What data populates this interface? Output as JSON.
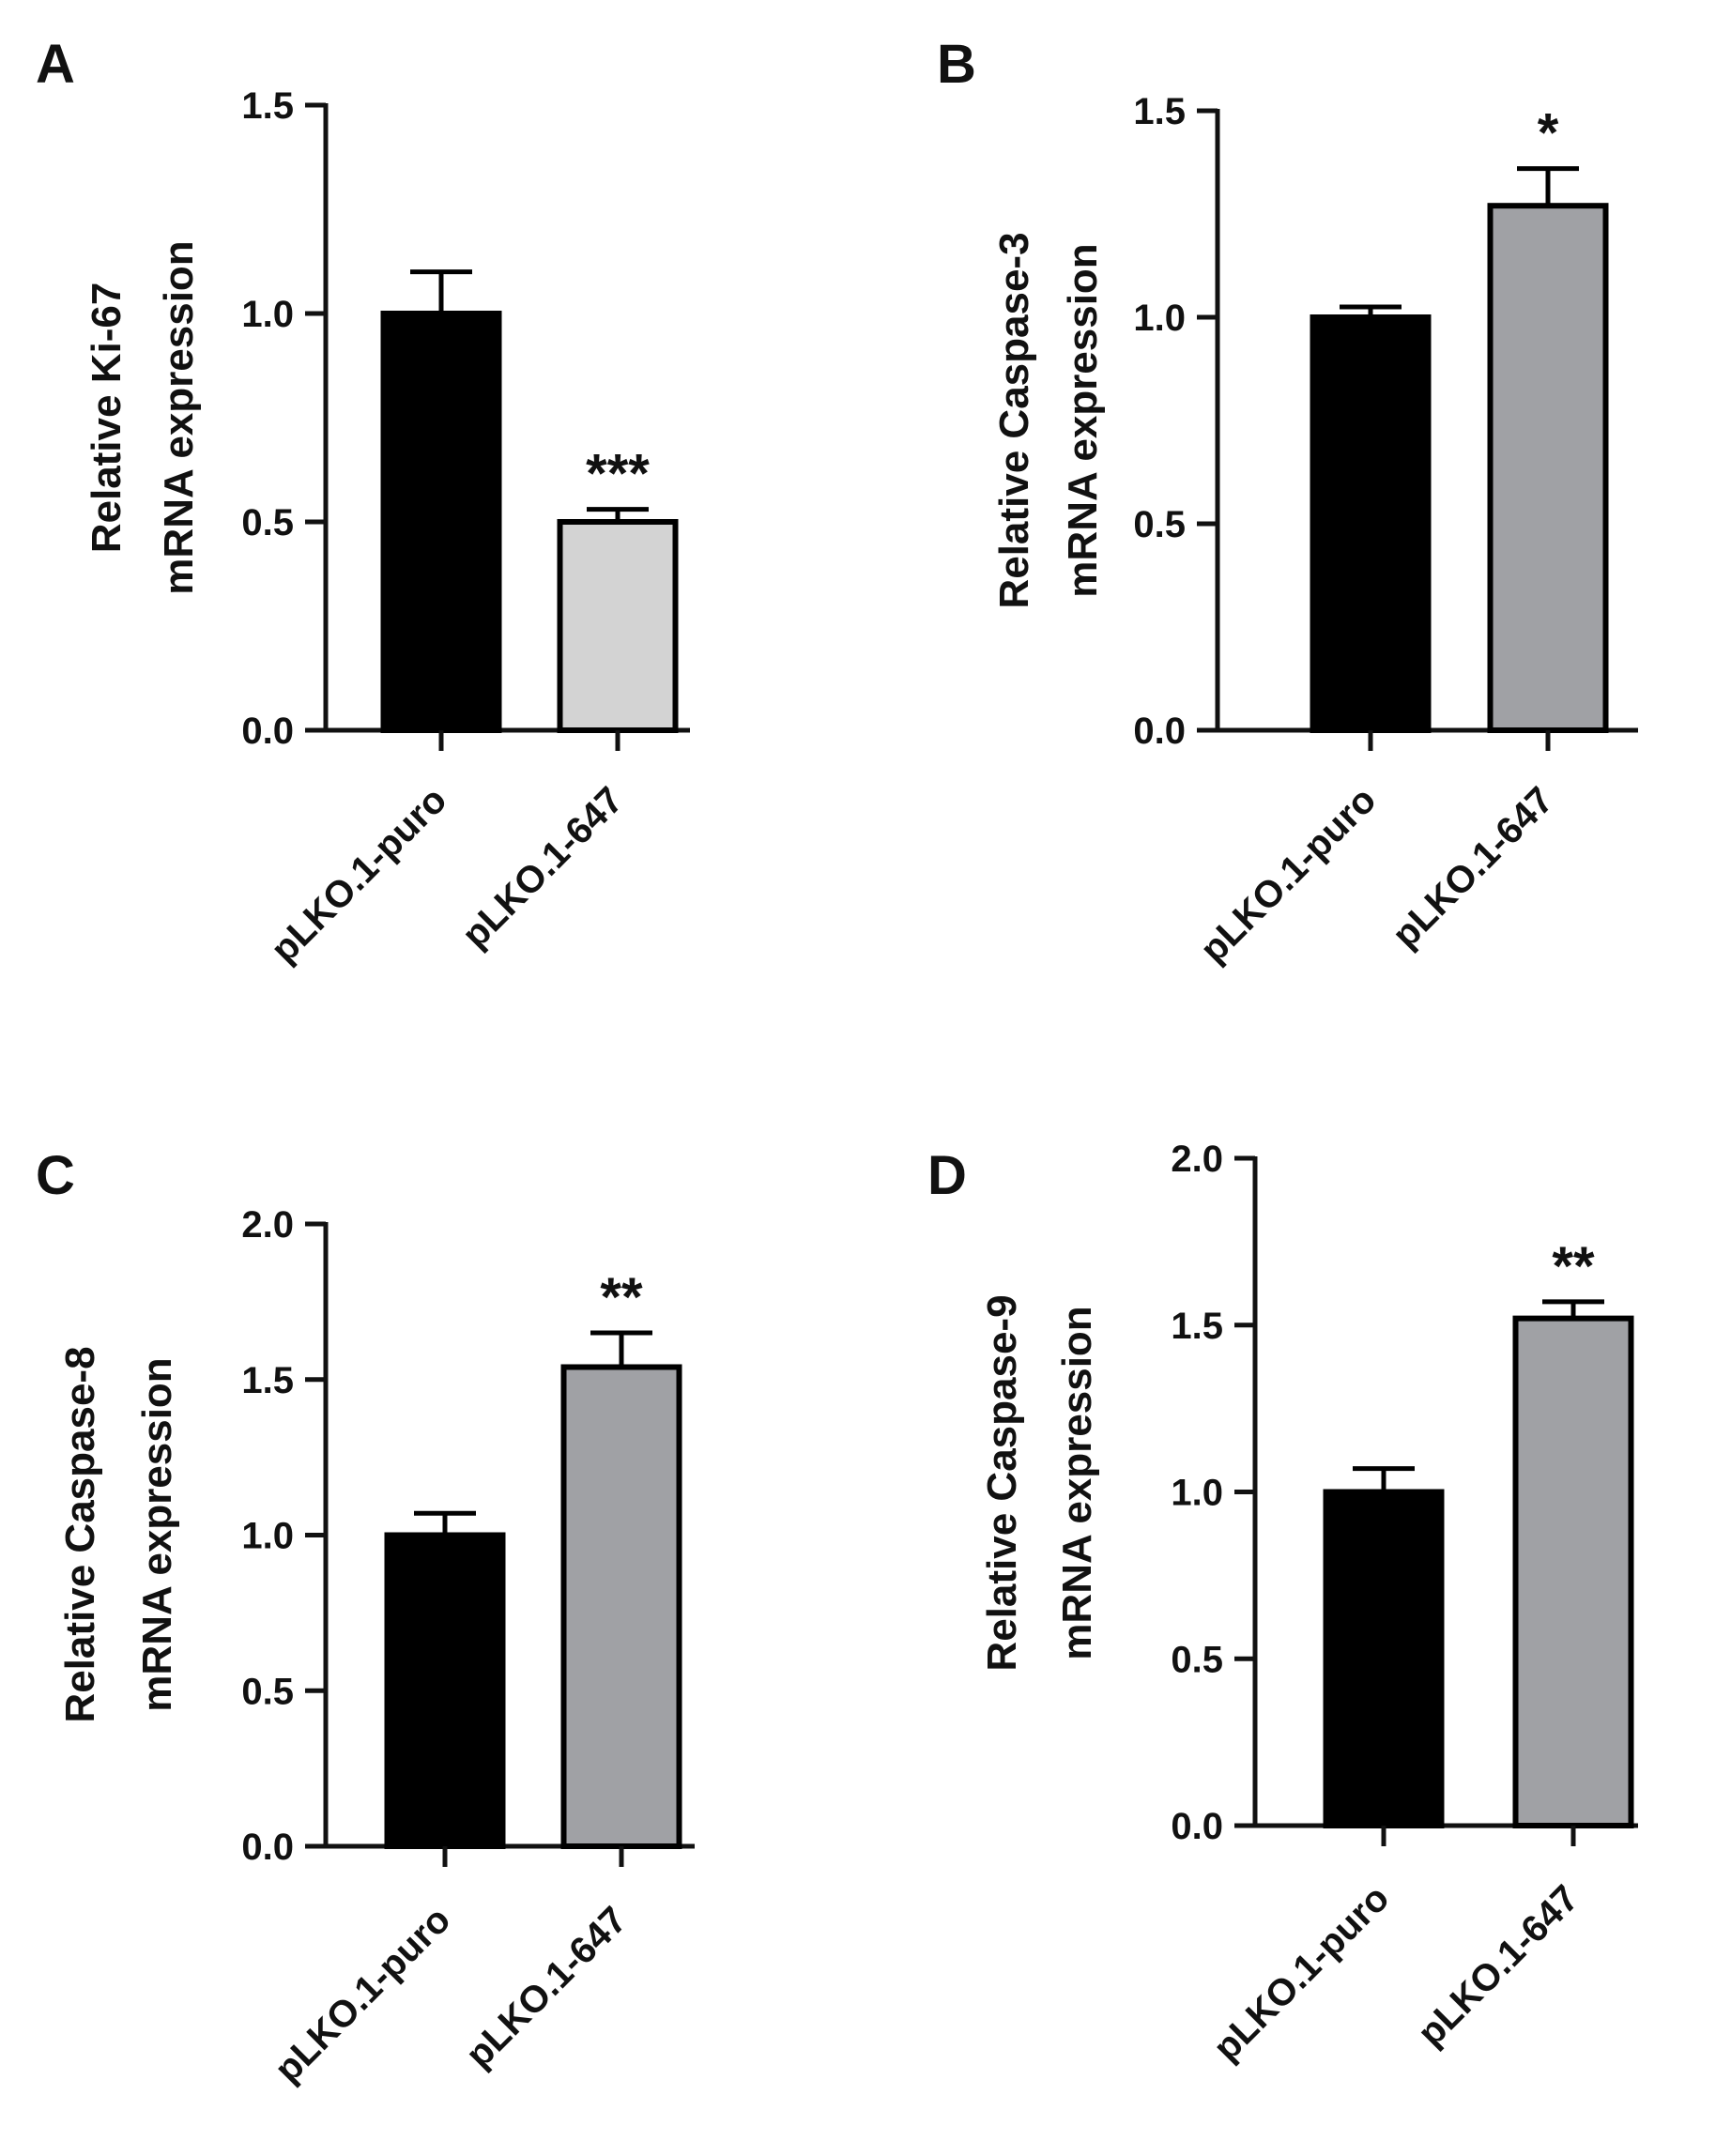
{
  "figure": {
    "colors": {
      "axis": "#111111",
      "bar_control": "#000000",
      "bar_ki67_treated": "#d3d3d3",
      "bar_treated": "#a0a1a5",
      "bar_edge": "#000000"
    }
  },
  "chart_data": [
    {
      "panel": "A",
      "type": "bar",
      "title": "",
      "xlabel": "",
      "ylabel_lines": [
        "Relative Ki-67",
        "mRNA expression"
      ],
      "categories": [
        "pLKO.1-puro",
        "pLKO.1-647"
      ],
      "values": [
        1.0,
        0.5
      ],
      "errors": [
        0.1,
        0.03
      ],
      "significance": [
        "",
        "***"
      ],
      "ylim": [
        0,
        1.5
      ],
      "yticks": [
        0.0,
        0.5,
        1.0,
        1.5
      ],
      "ytick_labels": [
        "0.0",
        "0.5",
        "1.0",
        "1.5"
      ],
      "bar_colors": [
        "#000000",
        "#d3d3d3"
      ]
    },
    {
      "panel": "B",
      "type": "bar",
      "title": "",
      "xlabel": "",
      "ylabel_lines": [
        "Relative Caspase-3",
        "mRNA expression"
      ],
      "categories": [
        "pLKO.1-puro",
        "pLKO.1-647"
      ],
      "values": [
        1.0,
        1.27
      ],
      "errors": [
        0.025,
        0.09
      ],
      "significance": [
        "",
        "*"
      ],
      "ylim": [
        0,
        1.5
      ],
      "yticks": [
        0.0,
        0.5,
        1.0,
        1.5
      ],
      "ytick_labels": [
        "0.0",
        "0.5",
        "1.0",
        "1.5"
      ],
      "bar_colors": [
        "#000000",
        "#a0a1a5"
      ]
    },
    {
      "panel": "C",
      "type": "bar",
      "title": "",
      "xlabel": "",
      "ylabel_lines": [
        "Relative Caspase-8",
        "mRNA expression"
      ],
      "categories": [
        "pLKO.1-puro",
        "pLKO.1-647"
      ],
      "values": [
        1.0,
        1.54
      ],
      "errors": [
        0.07,
        0.11
      ],
      "significance": [
        "",
        "**"
      ],
      "ylim": [
        0,
        2.0
      ],
      "yticks": [
        0.0,
        0.5,
        1.0,
        1.5,
        2.0
      ],
      "ytick_labels": [
        "0.0",
        "0.5",
        "1.0",
        "1.5",
        "2.0"
      ],
      "bar_colors": [
        "#000000",
        "#a0a1a5"
      ]
    },
    {
      "panel": "D",
      "type": "bar",
      "title": "",
      "xlabel": "",
      "ylabel_lines": [
        "Relative Caspase-9",
        "mRNA expression"
      ],
      "categories": [
        "pLKO.1-puro",
        "pLKO.1-647"
      ],
      "values": [
        1.0,
        1.52
      ],
      "errors": [
        0.07,
        0.05
      ],
      "significance": [
        "",
        "**"
      ],
      "ylim": [
        0,
        2.0
      ],
      "yticks": [
        0.0,
        0.5,
        1.0,
        1.5,
        2.0
      ],
      "ytick_labels": [
        "0.0",
        "0.5",
        "1.0",
        "1.5",
        "2.0"
      ],
      "bar_colors": [
        "#000000",
        "#a0a1a5"
      ]
    }
  ]
}
